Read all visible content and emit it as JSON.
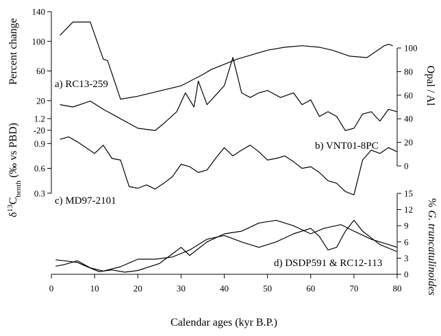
{
  "chart_data": {
    "type": "line",
    "xlabel": "Calendar ages (kyr B.P.)",
    "xlim": [
      0,
      80
    ],
    "xticks": [
      "0",
      "10",
      "20",
      "30",
      "40",
      "50",
      "60",
      "70",
      "80"
    ],
    "panels": [
      {
        "label": "a) RC13-259",
        "ylabel": "Percent change",
        "ylim": [
          -20,
          140
        ],
        "yticks": [
          "-20",
          "20",
          "60",
          "100",
          "140"
        ],
        "axis_side": "left",
        "series": [
          {
            "x": [
              2,
              5,
              9,
              12,
              13,
              16,
              20,
              25,
              30,
              35,
              37,
              43,
              50,
              54,
              58,
              62,
              65,
              69,
              73,
              77,
              78,
              79
            ],
            "y": [
              108,
              126,
              126,
              76,
              74,
              22,
              26,
              33,
              40,
              55,
              62,
              76,
              88,
              92,
              94,
              92,
              88,
              80,
              78,
              94,
              96,
              94
            ]
          }
        ]
      },
      {
        "label": "b) VNT01-8PC",
        "ylabel": "Opal / Al",
        "ylim": [
          0,
          100
        ],
        "yticks": [
          "0",
          "20",
          "40",
          "60",
          "80",
          "100"
        ],
        "axis_side": "right",
        "series": [
          {
            "x": [
              2,
              5,
              9,
              12,
              16,
              20,
              24,
              26,
              29,
              31,
              33,
              34,
              36,
              38,
              40,
              42,
              44,
              46,
              48,
              50,
              53,
              56,
              58,
              60,
              62,
              64,
              66,
              68,
              70,
              72,
              74,
              76,
              78,
              80
            ],
            "y": [
              52,
              50,
              55,
              48,
              40,
              32,
              30,
              36,
              46,
              62,
              50,
              72,
              52,
              60,
              68,
              92,
              62,
              58,
              62,
              64,
              58,
              62,
              52,
              56,
              42,
              46,
              42,
              30,
              32,
              44,
              46,
              38,
              48,
              46
            ]
          }
        ]
      },
      {
        "label": "c) MD97-2101",
        "ylabel": "δ13C benth (‰ vs PBD)",
        "ylim": [
          0.0,
          1.2
        ],
        "yticks": [
          "0.3",
          "0.6",
          "0.9",
          "1.2"
        ],
        "axis_side": "left",
        "series": [
          {
            "x": [
              2,
              4,
              6,
              8,
              10,
              12,
              14,
              16,
              18,
              20,
              22,
              24,
              26,
              28,
              30,
              32,
              34,
              36,
              38,
              40,
              42,
              44,
              46,
              48,
              50,
              52,
              54,
              56,
              58,
              60,
              62,
              64,
              66,
              68,
              70,
              72,
              74,
              76,
              78,
              80
            ],
            "y": [
              0.95,
              0.98,
              0.92,
              0.85,
              0.78,
              0.88,
              0.72,
              0.7,
              0.38,
              0.36,
              0.4,
              0.35,
              0.42,
              0.5,
              0.65,
              0.62,
              0.55,
              0.58,
              0.72,
              0.85,
              0.75,
              0.82,
              0.88,
              0.8,
              0.7,
              0.72,
              0.75,
              0.68,
              0.6,
              0.62,
              0.55,
              0.45,
              0.42,
              0.32,
              0.28,
              0.7,
              0.82,
              0.78,
              0.85,
              0.8
            ]
          }
        ]
      },
      {
        "label": "d) DSDP591 & RC12-113",
        "ylabel": "% G. truncatulinoides",
        "ylim": [
          0,
          15
        ],
        "yticks": [
          "0",
          "3",
          "6",
          "9",
          "12",
          "15"
        ],
        "axis_side": "right",
        "series": [
          {
            "x": [
              1,
              3,
              6,
              8,
              11,
              14,
              17,
              20,
              25,
              28,
              30,
              32,
              36,
              40,
              44,
              48,
              52,
              56,
              60,
              63,
              67,
              70,
              74,
              78,
              80
            ],
            "y": [
              2.7,
              2.5,
              2.2,
              1.5,
              0.5,
              0.8,
              0.4,
              0.7,
              2.0,
              3.8,
              5.0,
              3.5,
              6.0,
              7.5,
              8.0,
              9.5,
              10.0,
              9.0,
              7.5,
              8.5,
              9.2,
              8.0,
              6.5,
              5.5,
              5.0
            ]
          },
          {
            "x": [
              1,
              3,
              6,
              9,
              12,
              16,
              20,
              24,
              28,
              32,
              36,
              40,
              44,
              48,
              52,
              56,
              60,
              62,
              64,
              66,
              68,
              70,
              72,
              76,
              80
            ],
            "y": [
              1.5,
              1.8,
              2.5,
              1.2,
              0.6,
              1.4,
              2.8,
              2.8,
              3.2,
              4.5,
              6.5,
              7.2,
              6.0,
              5.0,
              6.0,
              7.5,
              8.5,
              7.0,
              4.5,
              5.0,
              8.0,
              10.0,
              8.0,
              5.5,
              4.2
            ]
          }
        ]
      }
    ]
  }
}
